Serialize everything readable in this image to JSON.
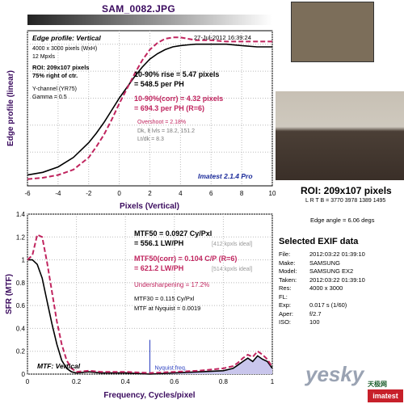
{
  "file_title": "SAM_0082.JPG",
  "chart_data": [
    {
      "type": "line",
      "title": "Edge profile: Vertical",
      "timestamp": "27-Jul-2012 16:39:24",
      "xlabel": "Pixels (Vertical)",
      "ylabel": "Edge profile (linear)",
      "xlim": [
        -6,
        10
      ],
      "x_ticks": [
        "-6",
        "-4",
        "-2",
        "0",
        "2",
        "4",
        "6",
        "8",
        "10"
      ],
      "grid": true,
      "info_lines": [
        "4000 x 3000 pixels (WxH)",
        "12 Mpxls",
        "ROI: 209x107 pixels",
        "75% right of ctr.",
        "Y-channel (YR75)",
        "Gamma = 0.5"
      ],
      "rise_lines": [
        "10-90% rise = 5.47 pixels",
        "= 548.5 per PH"
      ],
      "corr_lines": [
        "10-90%(corr) = 4.32 pixels",
        "= 694.3 per PH  (R=6)"
      ],
      "stat_lines": [
        "Overshoot = 2.18%",
        "Dk, lt lvls = 18.2, 151.2",
        "Lt/dk = 8.3"
      ],
      "footer": "Imatest 2.1.4 Pro",
      "series": [
        {
          "color": "#000000",
          "style": "solid",
          "x": [
            -6,
            -5,
            -4,
            -3,
            -2,
            -1.5,
            -1,
            -0.5,
            0,
            0.5,
            1,
            1.5,
            2,
            2.5,
            3,
            3.5,
            4,
            4.5,
            5,
            5.5,
            6,
            7,
            8,
            9,
            10
          ],
          "y": [
            0.03,
            0.05,
            0.09,
            0.16,
            0.27,
            0.34,
            0.42,
            0.51,
            0.6,
            0.68,
            0.76,
            0.83,
            0.89,
            0.93,
            0.96,
            0.98,
            0.99,
            0.995,
            1.0,
            1.0,
            1.0,
            1.0,
            0.99,
            0.98,
            0.98
          ]
        },
        {
          "color": "#c0245e",
          "style": "dashed",
          "x": [
            -6,
            -5,
            -4,
            -3,
            -2,
            -1.5,
            -1,
            -0.5,
            0,
            0.5,
            1,
            1.5,
            2,
            2.5,
            3,
            3.5,
            4,
            4.5,
            5,
            5.5,
            6,
            7,
            8,
            9,
            10
          ],
          "y": [
            0.0,
            0.01,
            0.03,
            0.07,
            0.16,
            0.24,
            0.33,
            0.44,
            0.56,
            0.67,
            0.78,
            0.88,
            0.96,
            1.01,
            1.04,
            1.05,
            1.05,
            1.04,
            1.03,
            1.03,
            1.03,
            1.02,
            1.02,
            1.02,
            1.02
          ]
        }
      ]
    },
    {
      "type": "line",
      "title": "MTF: Vertical",
      "xlabel": "Frequency, Cycles/pixel",
      "ylabel": "SFR (MTF)",
      "xlim": [
        0,
        1
      ],
      "ylim": [
        0,
        1.4
      ],
      "x_ticks": [
        "0",
        "0.2",
        "0.4",
        "0.6",
        "0.8",
        "1"
      ],
      "y_ticks": [
        "0",
        "0.2",
        "0.4",
        "0.6",
        "0.8",
        "1",
        "1.2",
        "1.4"
      ],
      "grid": true,
      "mtf50_lines": [
        "MTF50 = 0.0927 Cy/Pxl",
        "= 556.1 LW/PH"
      ],
      "mtf50_ideal": "[412 kpxls ideal]",
      "mtf50corr_lines": [
        "MTF50(corr) = 0.104 C/P  (R=6)",
        "= 621.2 LW/PH"
      ],
      "mtf50corr_ideal": "[514 kpxls ideal]",
      "undersharpening": "Undersharpening = 17.2%",
      "mtf30": "MTF30 = 0.115 Cy/Pxl",
      "mtf_nyq": "MTF at Nyquist = 0.0019",
      "nyquist_label": "Nyquist freq.",
      "nyquist_x": 0.5,
      "series": [
        {
          "color": "#000000",
          "style": "solid",
          "x": [
            0,
            0.02,
            0.04,
            0.06,
            0.08,
            0.1,
            0.12,
            0.14,
            0.16,
            0.18,
            0.2,
            0.25,
            0.3,
            0.4,
            0.5,
            0.6,
            0.7,
            0.8,
            0.84,
            0.86,
            0.88,
            0.9,
            0.92,
            0.94,
            0.96,
            0.98,
            1.0
          ],
          "y": [
            1.0,
            1.0,
            0.96,
            0.84,
            0.64,
            0.44,
            0.26,
            0.12,
            0.05,
            0.02,
            0.01,
            0.02,
            0.01,
            0.01,
            0.0,
            0.01,
            0.02,
            0.03,
            0.05,
            0.08,
            0.11,
            0.14,
            0.11,
            0.16,
            0.13,
            0.11,
            0.05
          ]
        },
        {
          "color": "#c0245e",
          "style": "dashed",
          "x": [
            0,
            0.02,
            0.04,
            0.06,
            0.08,
            0.1,
            0.12,
            0.14,
            0.16,
            0.18,
            0.2,
            0.25,
            0.3,
            0.4,
            0.5,
            0.6,
            0.7,
            0.8,
            0.84,
            0.86,
            0.88,
            0.9,
            0.92,
            0.94,
            0.96,
            0.98,
            1.0
          ],
          "y": [
            1.0,
            1.04,
            1.22,
            1.2,
            0.98,
            0.72,
            0.46,
            0.26,
            0.12,
            0.05,
            0.02,
            0.03,
            0.02,
            0.02,
            0.01,
            0.02,
            0.03,
            0.05,
            0.07,
            0.1,
            0.14,
            0.17,
            0.15,
            0.2,
            0.17,
            0.13,
            0.06
          ]
        }
      ]
    }
  ],
  "roi": {
    "title": "ROI: 209x107 pixels",
    "sub": "L R T B = 3770 3978 1389 1495"
  },
  "edge_angle": "Edge angle = 6.06 degs",
  "exif": {
    "title": "Selected EXIF data",
    "rows": [
      {
        "k": "File:",
        "v": "2012:03:22 01:39:10"
      },
      {
        "k": "Make:",
        "v": "SAMSUNG"
      },
      {
        "k": "Model:",
        "v": "SAMSUNG EX2"
      },
      {
        "k": "Taken:",
        "v": "2012:03:22 01:39:10"
      },
      {
        "k": "Res:",
        "v": "4000 x 3000"
      },
      {
        "k": "FL:",
        "v": ""
      },
      {
        "k": "Exp:",
        "v": "0.017 s  (1/60)"
      },
      {
        "k": "Aper:",
        "v": "f/2.7"
      },
      {
        "k": "ISO:",
        "v": "100"
      }
    ]
  },
  "watermark": {
    "text": "yesky",
    "sub": "天极网",
    "logo": "imatest"
  },
  "colors": {
    "title": "#3a0a5e",
    "axis_label": "#3a0a5e",
    "corr": "#c0245e",
    "panel_bg": "#ffffff"
  }
}
